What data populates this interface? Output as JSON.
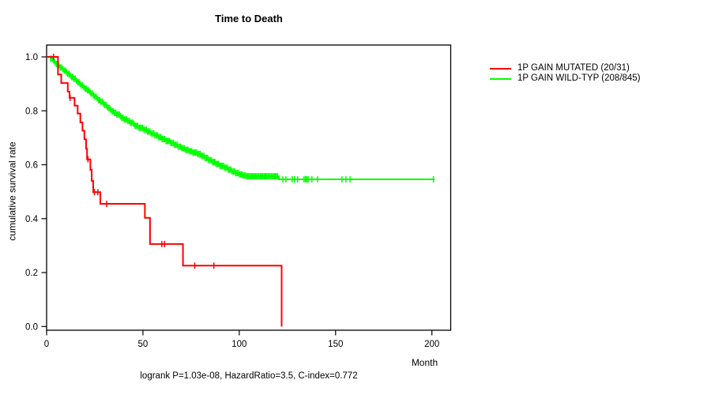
{
  "chart_data": {
    "type": "line",
    "subtype": "kaplan-meier-step-survival",
    "title": "Time to Death",
    "xlabel": "Month",
    "ylabel": "cumulative survival rate",
    "annotation": "logrank P=1.03e-08, HazardRatio=3.5, C-index=0.772",
    "xlim": [
      0,
      200
    ],
    "ylim": [
      0.0,
      1.0
    ],
    "x_ticks": [
      0,
      50,
      100,
      150,
      200
    ],
    "y_ticks": [
      0.0,
      0.2,
      0.4,
      0.6,
      0.8,
      1.0
    ],
    "y_tick_labels": [
      "0.0",
      "0.2",
      "0.4",
      "0.6",
      "0.8",
      "1.0"
    ],
    "grid": false,
    "legend_position": "right-outside",
    "axis_color": "#000000",
    "background_color": "#ffffff",
    "series": [
      {
        "name": "1P GAIN WILD-TYP (208/845)",
        "color": "#00ff00",
        "steps": [
          [
            0,
            1.0
          ],
          [
            2,
            0.993
          ],
          [
            3,
            0.987
          ],
          [
            4,
            0.981
          ],
          [
            5,
            0.974
          ],
          [
            6,
            0.968
          ],
          [
            7,
            0.961
          ],
          [
            8,
            0.955
          ],
          [
            9,
            0.949
          ],
          [
            10,
            0.943
          ],
          [
            11,
            0.937
          ],
          [
            12,
            0.931
          ],
          [
            13,
            0.925
          ],
          [
            14,
            0.919
          ],
          [
            15,
            0.912
          ],
          [
            16,
            0.906
          ],
          [
            17,
            0.9
          ],
          [
            18,
            0.894
          ],
          [
            19,
            0.888
          ],
          [
            20,
            0.882
          ],
          [
            21,
            0.876
          ],
          [
            22,
            0.87
          ],
          [
            23,
            0.864
          ],
          [
            24,
            0.858
          ],
          [
            25,
            0.852
          ],
          [
            26,
            0.846
          ],
          [
            27,
            0.84
          ],
          [
            28,
            0.834
          ],
          [
            29,
            0.828
          ],
          [
            30,
            0.822
          ],
          [
            31,
            0.816
          ],
          [
            32,
            0.81
          ],
          [
            33,
            0.804
          ],
          [
            34,
            0.798
          ],
          [
            35,
            0.792
          ],
          [
            36,
            0.786
          ],
          [
            38,
            0.78
          ],
          [
            39,
            0.774
          ],
          [
            40,
            0.768
          ],
          [
            42,
            0.762
          ],
          [
            43,
            0.756
          ],
          [
            45,
            0.75
          ],
          [
            46,
            0.744
          ],
          [
            48,
            0.737
          ],
          [
            50,
            0.73
          ],
          [
            52,
            0.723
          ],
          [
            54,
            0.716
          ],
          [
            56,
            0.709
          ],
          [
            58,
            0.702
          ],
          [
            60,
            0.695
          ],
          [
            62,
            0.688
          ],
          [
            64,
            0.681
          ],
          [
            66,
            0.674
          ],
          [
            68,
            0.667
          ],
          [
            70,
            0.661
          ],
          [
            72,
            0.655
          ],
          [
            74,
            0.65
          ],
          [
            76,
            0.645
          ],
          [
            78,
            0.64
          ],
          [
            80,
            0.633
          ],
          [
            82,
            0.625
          ],
          [
            84,
            0.617
          ],
          [
            86,
            0.61
          ],
          [
            88,
            0.603
          ],
          [
            90,
            0.596
          ],
          [
            92,
            0.589
          ],
          [
            94,
            0.582
          ],
          [
            96,
            0.575
          ],
          [
            98,
            0.569
          ],
          [
            100,
            0.564
          ],
          [
            102,
            0.56
          ],
          [
            104,
            0.557
          ],
          [
            120.6,
            0.546
          ],
          [
            201.4,
            0.546
          ]
        ],
        "censor_months": [
          2,
          2.8,
          3.5,
          4.2,
          5,
          5.6,
          6.3,
          7,
          7.7,
          8.4,
          9.1,
          9.8,
          10.4,
          11,
          11.7,
          12.3,
          13,
          13.6,
          14.2,
          14.9,
          15.5,
          16.2,
          16.8,
          17.4,
          18,
          18.7,
          19.3,
          20,
          20.6,
          21.2,
          21.9,
          22.5,
          23.1,
          23.8,
          24.4,
          25,
          25.7,
          26.3,
          27,
          27.6,
          28.2,
          28.9,
          29.5,
          30.1,
          30.8,
          31.4,
          32,
          32.7,
          33.3,
          34,
          34.6,
          35.2,
          35.9,
          36.5,
          37.1,
          37.8,
          38.4,
          39,
          39.7,
          40.3,
          41,
          41.6,
          42.2,
          42.9,
          43.5,
          44.1,
          44.8,
          45.4,
          46,
          46.7,
          47.3,
          48,
          48.6,
          49.2,
          49.9,
          50.5,
          51.1,
          51.8,
          52.4,
          53,
          53.7,
          54.3,
          55,
          55.6,
          56.2,
          56.9,
          57.5,
          58.1,
          58.8,
          59.4,
          60,
          60.7,
          61.3,
          62,
          62.6,
          63.2,
          63.9,
          64.5,
          65.1,
          65.8,
          66.4,
          67,
          67.7,
          68.3,
          69,
          69.6,
          70.2,
          70.9,
          71.5,
          72.1,
          72.8,
          73.4,
          74,
          74.7,
          75.3,
          76,
          76.6,
          77.2,
          77.9,
          78.5,
          79.1,
          79.8,
          80.4,
          81,
          81.7,
          82.3,
          83,
          83.6,
          84.2,
          84.9,
          85.5,
          86.1,
          86.8,
          87.4,
          88,
          88.7,
          89.3,
          90,
          90.6,
          91.2,
          91.9,
          92.5,
          93.1,
          93.8,
          94.4,
          95,
          95.7,
          96.3,
          97,
          97.6,
          98.2,
          98.9,
          99.5,
          100.1,
          100.8,
          101.4,
          102,
          102.7,
          103.3,
          104,
          104.6,
          105.2,
          105.9,
          106.5,
          107.1,
          107.8,
          108.4,
          109,
          109.7,
          110.3,
          111,
          111.6,
          112.2,
          112.9,
          113.5,
          114.1,
          114.8,
          115.4,
          116,
          116.7,
          117.3,
          118,
          118.6,
          119.2,
          119.9,
          122.6,
          124.2,
          127.5,
          128.7,
          130.3,
          133.6,
          134.4,
          135.1,
          135.8,
          137.7,
          140.6,
          153.3,
          155.4,
          157.5,
          200.8
        ]
      },
      {
        "name": "1P GAIN MUTATED (20/31)",
        "color": "#ff0000",
        "steps": [
          [
            0,
            1.0
          ],
          [
            5.9,
            0.935
          ],
          [
            7.6,
            0.903
          ],
          [
            11.0,
            0.871
          ],
          [
            11.9,
            0.848
          ],
          [
            14.5,
            0.819
          ],
          [
            16.1,
            0.79
          ],
          [
            17.5,
            0.757
          ],
          [
            18.6,
            0.726
          ],
          [
            19.6,
            0.694
          ],
          [
            20.5,
            0.659
          ],
          [
            21.0,
            0.62
          ],
          [
            22.7,
            0.581
          ],
          [
            23.4,
            0.54
          ],
          [
            24.2,
            0.498
          ],
          [
            27.9,
            0.455
          ],
          [
            51.0,
            0.403
          ],
          [
            53.7,
            0.306
          ],
          [
            70.8,
            0.226
          ],
          [
            122.0,
            0.0
          ]
        ],
        "censor_months": [
          3.6,
          12.2,
          21.5,
          24.8,
          26.6,
          31.2,
          59.8,
          61.2,
          76.9,
          86.8
        ]
      }
    ]
  }
}
